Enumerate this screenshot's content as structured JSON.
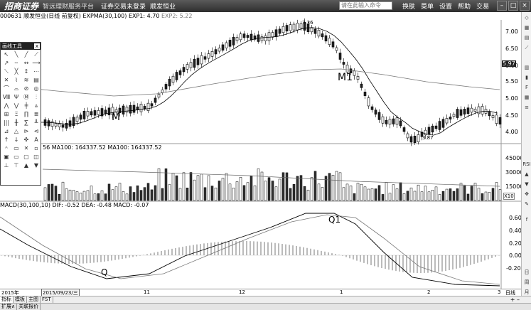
{
  "titlebar": {
    "logo": "招商证券",
    "slogan": "智远理财服务平台",
    "item1": "证券交易未登录",
    "item2": "顺发恒业",
    "search_placeholder": "请在此输入命令",
    "menu": [
      "换肤",
      "菜单",
      "设置",
      "帮助",
      "交易"
    ]
  },
  "info": {
    "code_name": "000631 顺发恒业(日线 前复权) EXPMA(30,100)",
    "exp1": "EXP1: 4.70",
    "exp2": "EXP2: 5.22"
  },
  "volume_label": "56 MA100: 164337.52  MA100: 164337.52",
  "macd_label": "MACD(30,100,10) DIF: -0.52  DEA: -0.48  MACD: -0.07",
  "annotations": {
    "m": "M",
    "m1": "M1",
    "q": "Q",
    "q1": "Q1",
    "high": "7.36",
    "low": "3.87"
  },
  "price_axis": [
    "7.00",
    "6.50",
    "6.00",
    "5.50",
    "5.00",
    "4.50",
    "4.00"
  ],
  "current_price": "5.97",
  "volume_axis": [
    "45000",
    "30000",
    "15000"
  ],
  "volume_unit": "X10",
  "macd_axis": [
    "0.60",
    "0.40",
    "0.20",
    "0.00",
    "-0.20"
  ],
  "time_axis": {
    "left": "2015年",
    "date_box": "2015/09/23/三",
    "ticks": [
      "11",
      "12",
      "1",
      "2",
      "3"
    ],
    "right": "日线"
  },
  "toolbox": {
    "title": "画线工具",
    "close": "x"
  },
  "sidebar": [
    "RSI",
    "日",
    "周",
    "月",
    "操",
    "盘"
  ],
  "tabs": [
    "指标",
    "模板",
    "主图",
    "FST"
  ],
  "bottom_tabs": [
    "扩展∧",
    "关联报价"
  ],
  "colors": {
    "up": "#000000",
    "down": "#333333",
    "line1": "#000000",
    "line2": "#888888"
  }
}
